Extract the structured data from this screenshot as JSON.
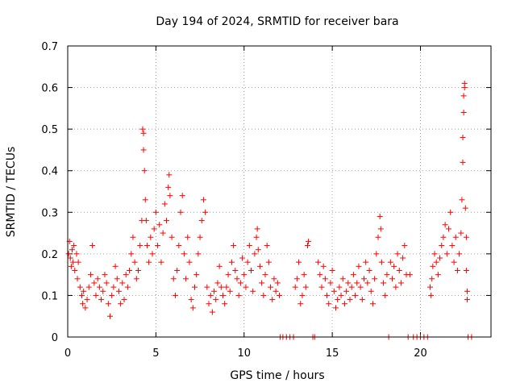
{
  "chart_data": {
    "type": "scatter",
    "title": "Day 194 of 2024, SRMTID for receiver bara",
    "xlabel": "GPS time / hours",
    "ylabel": "SRMTID / TECUs",
    "xlim": [
      0,
      24
    ],
    "ylim": [
      0,
      0.7
    ],
    "xticks": [
      0,
      5,
      10,
      15,
      20
    ],
    "yticks": [
      0,
      0.1,
      0.2,
      0.3,
      0.4,
      0.5,
      0.6,
      0.7
    ],
    "ytick_labels": [
      "0",
      "0.1",
      "0.2",
      "0.3",
      "0.4",
      "0.5",
      "0.6",
      "0.7"
    ],
    "grid": true,
    "marker": "plus",
    "color": "#ff0000",
    "series": [
      {
        "name": "SRMTID",
        "points": [
          [
            0.05,
            0.2
          ],
          [
            0.1,
            0.23
          ],
          [
            0.15,
            0.19
          ],
          [
            0.2,
            0.17
          ],
          [
            0.25,
            0.21
          ],
          [
            0.3,
            0.18
          ],
          [
            0.35,
            0.22
          ],
          [
            0.4,
            0.16
          ],
          [
            0.5,
            0.2
          ],
          [
            0.55,
            0.14
          ],
          [
            0.6,
            0.18
          ],
          [
            0.7,
            0.12
          ],
          [
            0.8,
            0.1
          ],
          [
            0.85,
            0.08
          ],
          [
            0.9,
            0.11
          ],
          [
            1.0,
            0.07
          ],
          [
            1.1,
            0.09
          ],
          [
            1.2,
            0.12
          ],
          [
            1.3,
            0.15
          ],
          [
            1.4,
            0.22
          ],
          [
            1.5,
            0.13
          ],
          [
            1.6,
            0.1
          ],
          [
            1.7,
            0.14
          ],
          [
            1.8,
            0.12
          ],
          [
            1.9,
            0.09
          ],
          [
            2.0,
            0.11
          ],
          [
            2.1,
            0.15
          ],
          [
            2.2,
            0.13
          ],
          [
            2.3,
            0.08
          ],
          [
            2.4,
            0.05
          ],
          [
            2.5,
            0.1
          ],
          [
            2.6,
            0.12
          ],
          [
            2.7,
            0.17
          ],
          [
            2.8,
            0.14
          ],
          [
            2.9,
            0.11
          ],
          [
            3.0,
            0.08
          ],
          [
            3.1,
            0.13
          ],
          [
            3.2,
            0.09
          ],
          [
            3.3,
            0.15
          ],
          [
            3.4,
            0.12
          ],
          [
            3.5,
            0.16
          ],
          [
            3.6,
            0.2
          ],
          [
            3.7,
            0.24
          ],
          [
            3.8,
            0.18
          ],
          [
            3.9,
            0.14
          ],
          [
            4.0,
            0.16
          ],
          [
            4.1,
            0.22
          ],
          [
            4.2,
            0.28
          ],
          [
            4.25,
            0.5
          ],
          [
            4.3,
            0.49
          ],
          [
            4.3,
            0.45
          ],
          [
            4.35,
            0.4
          ],
          [
            4.4,
            0.33
          ],
          [
            4.45,
            0.28
          ],
          [
            4.5,
            0.22
          ],
          [
            4.6,
            0.18
          ],
          [
            4.7,
            0.24
          ],
          [
            4.8,
            0.2
          ],
          [
            4.9,
            0.26
          ],
          [
            5.0,
            0.3
          ],
          [
            5.1,
            0.22
          ],
          [
            5.2,
            0.27
          ],
          [
            5.3,
            0.18
          ],
          [
            5.4,
            0.25
          ],
          [
            5.5,
            0.32
          ],
          [
            5.6,
            0.28
          ],
          [
            5.7,
            0.36
          ],
          [
            5.75,
            0.39
          ],
          [
            5.8,
            0.34
          ],
          [
            5.9,
            0.24
          ],
          [
            6.0,
            0.14
          ],
          [
            6.1,
            0.1
          ],
          [
            6.2,
            0.16
          ],
          [
            6.3,
            0.22
          ],
          [
            6.4,
            0.3
          ],
          [
            6.5,
            0.34
          ],
          [
            6.6,
            0.2
          ],
          [
            6.7,
            0.14
          ],
          [
            6.8,
            0.24
          ],
          [
            6.9,
            0.18
          ],
          [
            7.0,
            0.09
          ],
          [
            7.1,
            0.07
          ],
          [
            7.2,
            0.12
          ],
          [
            7.3,
            0.15
          ],
          [
            7.4,
            0.2
          ],
          [
            7.5,
            0.24
          ],
          [
            7.6,
            0.28
          ],
          [
            7.7,
            0.33
          ],
          [
            7.8,
            0.3
          ],
          [
            7.9,
            0.12
          ],
          [
            8.0,
            0.08
          ],
          [
            8.1,
            0.1
          ],
          [
            8.2,
            0.06
          ],
          [
            8.3,
            0.11
          ],
          [
            8.4,
            0.09
          ],
          [
            8.5,
            0.13
          ],
          [
            8.6,
            0.17
          ],
          [
            8.7,
            0.12
          ],
          [
            8.8,
            0.1
          ],
          [
            8.9,
            0.08
          ],
          [
            9.0,
            0.12
          ],
          [
            9.1,
            0.15
          ],
          [
            9.2,
            0.11
          ],
          [
            9.3,
            0.18
          ],
          [
            9.4,
            0.22
          ],
          [
            9.5,
            0.16
          ],
          [
            9.6,
            0.14
          ],
          [
            9.7,
            0.1
          ],
          [
            9.8,
            0.13
          ],
          [
            9.9,
            0.19
          ],
          [
            10.0,
            0.15
          ],
          [
            10.1,
            0.12
          ],
          [
            10.2,
            0.18
          ],
          [
            10.3,
            0.22
          ],
          [
            10.4,
            0.16
          ],
          [
            10.5,
            0.11
          ],
          [
            10.6,
            0.2
          ],
          [
            10.7,
            0.24
          ],
          [
            10.75,
            0.26
          ],
          [
            10.8,
            0.21
          ],
          [
            10.9,
            0.17
          ],
          [
            11.0,
            0.13
          ],
          [
            11.1,
            0.1
          ],
          [
            11.2,
            0.15
          ],
          [
            11.3,
            0.22
          ],
          [
            11.4,
            0.18
          ],
          [
            11.5,
            0.12
          ],
          [
            11.6,
            0.09
          ],
          [
            11.7,
            0.14
          ],
          [
            11.8,
            0.11
          ],
          [
            11.9,
            0.13
          ],
          [
            12.0,
            0.1
          ],
          [
            12.05,
            0.0
          ],
          [
            12.2,
            0.0
          ],
          [
            12.4,
            0.0
          ],
          [
            12.6,
            0.0
          ],
          [
            12.8,
            0.0
          ],
          [
            12.9,
            0.12
          ],
          [
            13.0,
            0.14
          ],
          [
            13.1,
            0.18
          ],
          [
            13.2,
            0.08
          ],
          [
            13.3,
            0.1
          ],
          [
            13.4,
            0.15
          ],
          [
            13.5,
            0.12
          ],
          [
            13.6,
            0.22
          ],
          [
            13.65,
            0.23
          ],
          [
            13.9,
            0.0
          ],
          [
            14.0,
            0.0
          ],
          [
            14.2,
            0.18
          ],
          [
            14.3,
            0.15
          ],
          [
            14.4,
            0.12
          ],
          [
            14.5,
            0.17
          ],
          [
            14.6,
            0.14
          ],
          [
            14.7,
            0.1
          ],
          [
            14.8,
            0.08
          ],
          [
            14.9,
            0.13
          ],
          [
            15.0,
            0.16
          ],
          [
            15.1,
            0.11
          ],
          [
            15.2,
            0.07
          ],
          [
            15.3,
            0.09
          ],
          [
            15.4,
            0.12
          ],
          [
            15.5,
            0.1
          ],
          [
            15.6,
            0.14
          ],
          [
            15.7,
            0.08
          ],
          [
            15.8,
            0.11
          ],
          [
            15.9,
            0.13
          ],
          [
            16.0,
            0.09
          ],
          [
            16.1,
            0.12
          ],
          [
            16.2,
            0.15
          ],
          [
            16.3,
            0.1
          ],
          [
            16.4,
            0.13
          ],
          [
            16.5,
            0.17
          ],
          [
            16.6,
            0.12
          ],
          [
            16.7,
            0.09
          ],
          [
            16.8,
            0.14
          ],
          [
            16.9,
            0.18
          ],
          [
            17.0,
            0.13
          ],
          [
            17.1,
            0.16
          ],
          [
            17.2,
            0.11
          ],
          [
            17.3,
            0.08
          ],
          [
            17.4,
            0.14
          ],
          [
            17.5,
            0.2
          ],
          [
            17.6,
            0.24
          ],
          [
            17.7,
            0.29
          ],
          [
            17.75,
            0.26
          ],
          [
            17.8,
            0.18
          ],
          [
            17.9,
            0.13
          ],
          [
            18.0,
            0.1
          ],
          [
            18.1,
            0.15
          ],
          [
            18.2,
            0.0
          ],
          [
            18.3,
            0.18
          ],
          [
            18.4,
            0.14
          ],
          [
            18.5,
            0.17
          ],
          [
            18.6,
            0.12
          ],
          [
            18.7,
            0.2
          ],
          [
            18.8,
            0.16
          ],
          [
            18.9,
            0.13
          ],
          [
            19.0,
            0.19
          ],
          [
            19.1,
            0.22
          ],
          [
            19.2,
            0.15
          ],
          [
            19.3,
            0.0
          ],
          [
            19.4,
            0.15
          ],
          [
            19.6,
            0.0
          ],
          [
            19.8,
            0.0
          ],
          [
            20.0,
            0.0
          ],
          [
            20.2,
            0.0
          ],
          [
            20.4,
            0.0
          ],
          [
            20.55,
            0.12
          ],
          [
            20.6,
            0.1
          ],
          [
            20.65,
            0.14
          ],
          [
            20.7,
            0.17
          ],
          [
            20.8,
            0.2
          ],
          [
            20.9,
            0.18
          ],
          [
            21.0,
            0.15
          ],
          [
            21.1,
            0.19
          ],
          [
            21.2,
            0.22
          ],
          [
            21.3,
            0.24
          ],
          [
            21.4,
            0.27
          ],
          [
            21.5,
            0.2
          ],
          [
            21.6,
            0.26
          ],
          [
            21.7,
            0.3
          ],
          [
            21.8,
            0.22
          ],
          [
            21.9,
            0.18
          ],
          [
            22.0,
            0.24
          ],
          [
            22.1,
            0.16
          ],
          [
            22.2,
            0.2
          ],
          [
            22.3,
            0.25
          ],
          [
            22.35,
            0.33
          ],
          [
            22.4,
            0.42
          ],
          [
            22.4,
            0.48
          ],
          [
            22.45,
            0.54
          ],
          [
            22.45,
            0.58
          ],
          [
            22.5,
            0.6
          ],
          [
            22.5,
            0.61
          ],
          [
            22.55,
            0.31
          ],
          [
            22.6,
            0.24
          ],
          [
            22.6,
            0.16
          ],
          [
            22.65,
            0.11
          ],
          [
            22.65,
            0.09
          ],
          [
            22.7,
            0.0
          ],
          [
            22.9,
            0.0
          ]
        ]
      }
    ]
  }
}
